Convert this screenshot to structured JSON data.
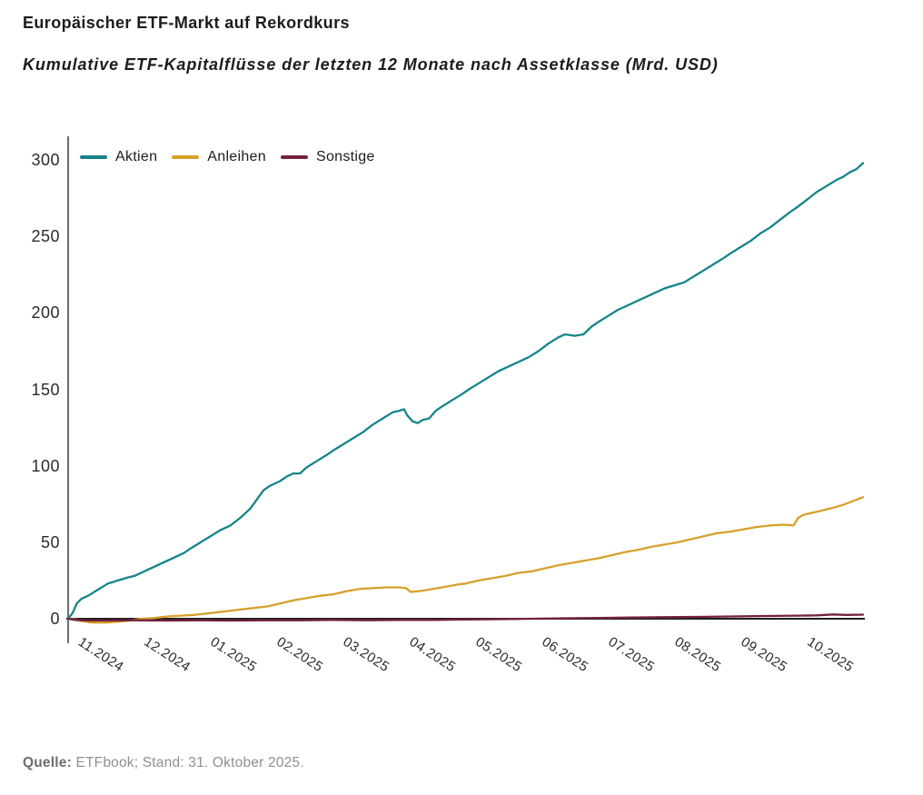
{
  "header": {
    "title": "Europäischer ETF-Markt auf Rekordkurs",
    "subtitle": "Kumulative ETF-Kapitalflüsse der letzten 12 Monate nach Assetklasse (Mrd. USD)"
  },
  "source": {
    "label": "Quelle:",
    "text": " ETFbook; Stand: 31. Oktober 2025."
  },
  "colors": {
    "aktien": "#16848A",
    "anleihen": "#D7A02B",
    "sonstige": "#74203F",
    "y_axis_line": "#4a4a4a",
    "zero_line": "#1f1f1f",
    "tick_text": "#2b2b2b",
    "title_text": "#1c1c1c",
    "source_text": "#8f8f8f"
  },
  "chart_data": {
    "type": "line",
    "title": "Europäischer ETF-Markt auf Rekordkurs",
    "subtitle": "Kumulative ETF-Kapitalflüsse der letzten 12 Monate nach Assetklasse (Mrd. USD)",
    "unit": "Mrd. USD",
    "grid": false,
    "legend_position": "top-left-inside",
    "x_tick_labels": [
      "11.2024",
      "12.2024",
      "01.2025",
      "02.2025",
      "03.2025",
      "04.2025",
      "05.2025",
      "06.2025",
      "07.2025",
      "08.2025",
      "09.2025",
      "10.2025"
    ],
    "y_ticks": [
      0,
      50,
      100,
      150,
      200,
      250,
      300
    ],
    "y_tick_labels": [
      "0",
      "50",
      "100",
      "150",
      "200",
      "250",
      "300"
    ],
    "ylim": [
      0,
      300
    ],
    "xlim_months": [
      0,
      12
    ],
    "series": [
      {
        "id": "aktien",
        "name": "Aktien",
        "color": "#16848A",
        "end_value": 298,
        "monthly_cumulative": [
          28,
          50,
          86,
          110,
          136,
          151,
          173,
          194,
          216,
          239,
          269,
          298
        ],
        "points": [
          [
            0,
            0
          ],
          [
            0.07,
            4
          ],
          [
            0.13,
            10
          ],
          [
            0.2,
            13
          ],
          [
            0.3,
            15
          ],
          [
            0.45,
            19
          ],
          [
            0.6,
            23
          ],
          [
            0.75,
            25
          ],
          [
            0.9,
            27
          ],
          [
            1,
            28
          ],
          [
            1.15,
            31
          ],
          [
            1.3,
            34
          ],
          [
            1.45,
            37
          ],
          [
            1.6,
            40
          ],
          [
            1.75,
            43
          ],
          [
            1.85,
            46
          ],
          [
            2,
            50
          ],
          [
            2.15,
            54
          ],
          [
            2.3,
            58
          ],
          [
            2.45,
            61
          ],
          [
            2.6,
            66
          ],
          [
            2.75,
            72
          ],
          [
            2.85,
            78
          ],
          [
            2.95,
            84
          ],
          [
            3.05,
            87
          ],
          [
            3.2,
            90
          ],
          [
            3.3,
            93
          ],
          [
            3.4,
            95
          ],
          [
            3.5,
            95
          ],
          [
            3.6,
            99
          ],
          [
            3.75,
            103
          ],
          [
            3.9,
            107
          ],
          [
            4,
            110
          ],
          [
            4.15,
            114
          ],
          [
            4.3,
            118
          ],
          [
            4.45,
            122
          ],
          [
            4.6,
            127
          ],
          [
            4.75,
            131
          ],
          [
            4.9,
            135
          ],
          [
            5,
            136
          ],
          [
            5.07,
            137
          ],
          [
            5.12,
            133
          ],
          [
            5.2,
            129
          ],
          [
            5.28,
            128
          ],
          [
            5.35,
            130
          ],
          [
            5.45,
            131
          ],
          [
            5.55,
            136
          ],
          [
            5.65,
            139
          ],
          [
            5.8,
            143
          ],
          [
            5.95,
            147
          ],
          [
            6.05,
            150
          ],
          [
            6.2,
            154
          ],
          [
            6.35,
            158
          ],
          [
            6.5,
            162
          ],
          [
            6.65,
            165
          ],
          [
            6.8,
            168
          ],
          [
            6.95,
            171
          ],
          [
            7.1,
            175
          ],
          [
            7.25,
            180
          ],
          [
            7.4,
            184
          ],
          [
            7.5,
            186
          ],
          [
            7.65,
            185
          ],
          [
            7.78,
            186
          ],
          [
            7.9,
            191
          ],
          [
            8,
            194
          ],
          [
            8.15,
            198
          ],
          [
            8.3,
            202
          ],
          [
            8.45,
            205
          ],
          [
            8.6,
            208
          ],
          [
            8.75,
            211
          ],
          [
            8.9,
            214
          ],
          [
            9,
            216
          ],
          [
            9.15,
            218
          ],
          [
            9.3,
            220
          ],
          [
            9.45,
            224
          ],
          [
            9.6,
            228
          ],
          [
            9.75,
            232
          ],
          [
            9.9,
            236
          ],
          [
            10,
            239
          ],
          [
            10.15,
            243
          ],
          [
            10.3,
            247
          ],
          [
            10.45,
            252
          ],
          [
            10.6,
            256
          ],
          [
            10.75,
            261
          ],
          [
            10.9,
            266
          ],
          [
            11,
            269
          ],
          [
            11.15,
            274
          ],
          [
            11.3,
            279
          ],
          [
            11.45,
            283
          ],
          [
            11.6,
            287
          ],
          [
            11.7,
            289
          ],
          [
            11.8,
            292
          ],
          [
            11.9,
            294
          ],
          [
            12,
            298
          ]
        ]
      },
      {
        "id": "anleihen",
        "name": "Anleihen",
        "color": "#D7A02B",
        "end_value": 80,
        "monthly_cumulative": [
          -0.5,
          3,
          8,
          16,
          20.5,
          23,
          31,
          39.5,
          48.5,
          57,
          66,
          79.5
        ],
        "points": [
          [
            0,
            0
          ],
          [
            0.1,
            -0.5
          ],
          [
            0.2,
            -1.5
          ],
          [
            0.35,
            -2.5
          ],
          [
            0.55,
            -2.5
          ],
          [
            0.75,
            -2
          ],
          [
            0.95,
            -1
          ],
          [
            1.1,
            0
          ],
          [
            1.3,
            0.5
          ],
          [
            1.5,
            1.5
          ],
          [
            1.7,
            2
          ],
          [
            1.9,
            2.5
          ],
          [
            2,
            3
          ],
          [
            2.2,
            4
          ],
          [
            2.4,
            5
          ],
          [
            2.6,
            6
          ],
          [
            2.8,
            7
          ],
          [
            3,
            8
          ],
          [
            3.2,
            10
          ],
          [
            3.4,
            12
          ],
          [
            3.6,
            13.5
          ],
          [
            3.8,
            15
          ],
          [
            4,
            16
          ],
          [
            4.2,
            18
          ],
          [
            4.4,
            19.5
          ],
          [
            4.6,
            20
          ],
          [
            4.8,
            20.5
          ],
          [
            5,
            20.5
          ],
          [
            5.1,
            20
          ],
          [
            5.17,
            17.5
          ],
          [
            5.3,
            18
          ],
          [
            5.5,
            19.5
          ],
          [
            5.7,
            21
          ],
          [
            5.9,
            22.5
          ],
          [
            6,
            23
          ],
          [
            6.2,
            25
          ],
          [
            6.4,
            26.5
          ],
          [
            6.6,
            28
          ],
          [
            6.8,
            30
          ],
          [
            7,
            31
          ],
          [
            7.2,
            33
          ],
          [
            7.4,
            35
          ],
          [
            7.6,
            36.5
          ],
          [
            7.8,
            38
          ],
          [
            8,
            39.5
          ],
          [
            8.2,
            41.5
          ],
          [
            8.4,
            43.5
          ],
          [
            8.6,
            45
          ],
          [
            8.8,
            47
          ],
          [
            9,
            48.5
          ],
          [
            9.2,
            50
          ],
          [
            9.4,
            52
          ],
          [
            9.6,
            54
          ],
          [
            9.8,
            56
          ],
          [
            10,
            57
          ],
          [
            10.2,
            58.5
          ],
          [
            10.4,
            60
          ],
          [
            10.6,
            61
          ],
          [
            10.8,
            61.5
          ],
          [
            10.95,
            61
          ],
          [
            11.02,
            66
          ],
          [
            11.1,
            68
          ],
          [
            11.3,
            70
          ],
          [
            11.5,
            72
          ],
          [
            11.7,
            74.5
          ],
          [
            11.85,
            77
          ],
          [
            12,
            79.5
          ]
        ]
      },
      {
        "id": "sonstige",
        "name": "Sonstige",
        "color": "#74203F",
        "end_value": 2.7,
        "monthly_cumulative": [
          -1,
          -1,
          -1,
          -0.8,
          -0.8,
          -0.5,
          0,
          0.5,
          1,
          1.5,
          2,
          2.7
        ],
        "points": [
          [
            0,
            0
          ],
          [
            0.1,
            -0.8
          ],
          [
            0.3,
            -1.2
          ],
          [
            0.6,
            -1.2
          ],
          [
            1,
            -1
          ],
          [
            1.5,
            -1.2
          ],
          [
            2,
            -1
          ],
          [
            2.5,
            -1.2
          ],
          [
            3,
            -1
          ],
          [
            3.5,
            -1
          ],
          [
            4,
            -0.8
          ],
          [
            4.5,
            -1
          ],
          [
            5,
            -0.8
          ],
          [
            5.5,
            -0.8
          ],
          [
            6,
            -0.5
          ],
          [
            6.5,
            -0.3
          ],
          [
            7,
            0
          ],
          [
            7.5,
            0.3
          ],
          [
            8,
            0.5
          ],
          [
            8.5,
            0.8
          ],
          [
            9,
            1
          ],
          [
            9.5,
            1.2
          ],
          [
            10,
            1.5
          ],
          [
            10.5,
            1.8
          ],
          [
            11,
            2
          ],
          [
            11.3,
            2.2
          ],
          [
            11.55,
            2.8
          ],
          [
            11.75,
            2.5
          ],
          [
            12,
            2.7
          ]
        ]
      }
    ]
  }
}
